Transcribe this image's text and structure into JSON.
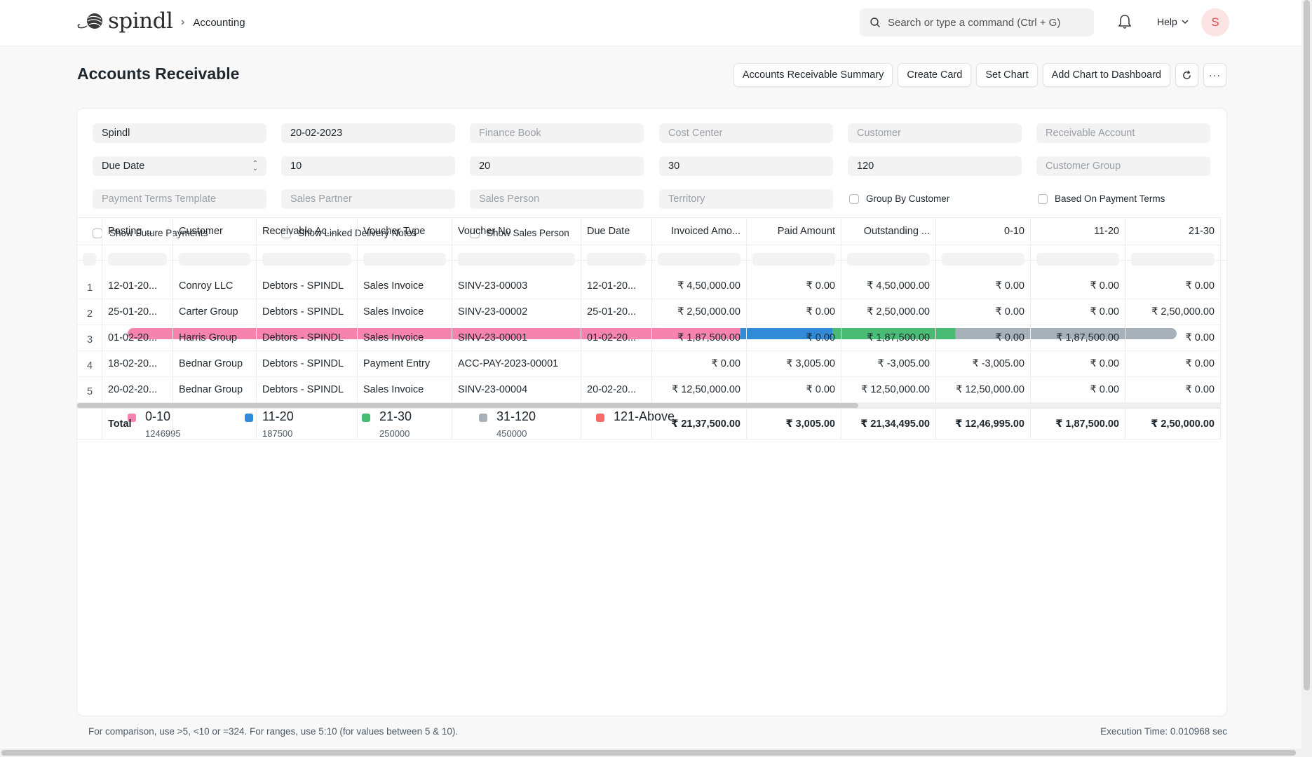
{
  "navbar": {
    "brand": "spindl",
    "breadcrumb": "Accounting",
    "search_placeholder": "Search or type a command (Ctrl + G)",
    "help_label": "Help",
    "avatar_initial": "S"
  },
  "page": {
    "title": "Accounts Receivable",
    "actions": [
      "Accounts Receivable Summary",
      "Create Card",
      "Set Chart",
      "Add Chart to Dashboard"
    ]
  },
  "filters": {
    "company": "Spindl",
    "report_date": "20-02-2023",
    "finance_book": "Finance Book",
    "cost_center": "Cost Center",
    "customer": "Customer",
    "receivable_account": "Receivable Account",
    "ageing_based_on": "Due Date",
    "range1": "10",
    "range2": "20",
    "range3": "30",
    "range4": "120",
    "customer_group": "Customer Group",
    "payment_terms_template": "Payment Terms Template",
    "sales_partner": "Sales Partner",
    "sales_person": "Sales Person",
    "territory": "Territory",
    "group_by_customer": "Group By Customer",
    "based_on_payment_terms": "Based On Payment Terms",
    "show_future_payments": "Show Future Payments",
    "show_linked_delivery_notes": "Show Linked Delivery Notes",
    "show_sales_person": "Show Sales Person"
  },
  "chart_data": {
    "type": "bar",
    "stacked": true,
    "orientation": "horizontal",
    "series": [
      {
        "name": "0-10",
        "value": 1246995,
        "value_label": "1246995",
        "color": "#f683ae"
      },
      {
        "name": "11-20",
        "value": 187500,
        "value_label": "187500",
        "color": "#318ad8"
      },
      {
        "name": "21-30",
        "value": 250000,
        "value_label": "250000",
        "color": "#48bb74"
      },
      {
        "name": "31-120",
        "value": 450000,
        "value_label": "450000",
        "color": "#a6b1b9"
      },
      {
        "name": "121-Above",
        "value": 0,
        "value_label": "",
        "color": "#f56b6b"
      }
    ],
    "legend": "bottom-left"
  },
  "table": {
    "columns": [
      "Posting ...",
      "Customer",
      "Receivable Ac...",
      "Voucher Type",
      "Voucher No",
      "Due Date",
      "Invoiced Amo...",
      "Paid Amount",
      "Outstanding ...",
      "0-10",
      "11-20",
      "21-30"
    ],
    "rows": [
      [
        "1",
        "12-01-20...",
        "Conroy LLC",
        "Debtors - SPINDL",
        "Sales Invoice",
        "SINV-23-00003",
        "12-01-20...",
        "₹ 4,50,000.00",
        "₹ 0.00",
        "₹ 4,50,000.00",
        "₹ 0.00",
        "₹ 0.00",
        "₹ 0.00"
      ],
      [
        "2",
        "25-01-20...",
        "Carter Group",
        "Debtors - SPINDL",
        "Sales Invoice",
        "SINV-23-00002",
        "25-01-20...",
        "₹ 2,50,000.00",
        "₹ 0.00",
        "₹ 2,50,000.00",
        "₹ 0.00",
        "₹ 0.00",
        "₹ 2,50,000.00"
      ],
      [
        "3",
        "01-02-20...",
        "Harris Group",
        "Debtors - SPINDL",
        "Sales Invoice",
        "SINV-23-00001",
        "01-02-20...",
        "₹ 1,87,500.00",
        "₹ 0.00",
        "₹ 1,87,500.00",
        "₹ 0.00",
        "₹ 1,87,500.00",
        "₹ 0.00"
      ],
      [
        "4",
        "18-02-20...",
        "Bednar Group",
        "Debtors - SPINDL",
        "Payment Entry",
        "ACC-PAY-2023-00001",
        "",
        "₹ 0.00",
        "₹ 3,005.00",
        "₹ -3,005.00",
        "₹ -3,005.00",
        "₹ 0.00",
        "₹ 0.00"
      ],
      [
        "5",
        "20-02-20...",
        "Bednar Group",
        "Debtors - SPINDL",
        "Sales Invoice",
        "SINV-23-00004",
        "20-02-20...",
        "₹ 12,50,000.00",
        "₹ 0.00",
        "₹ 12,50,000.00",
        "₹ 12,50,000.00",
        "₹ 0.00",
        "₹ 0.00"
      ]
    ],
    "total": [
      "",
      "Total",
      "",
      "",
      "",
      "",
      "",
      "₹ 21,37,500.00",
      "₹ 3,005.00",
      "₹ 21,34,495.00",
      "₹ 12,46,995.00",
      "₹ 1,87,500.00",
      "₹ 2,50,000.00"
    ]
  },
  "footer": {
    "note": "For comparison, use >5, <10 or =324. For ranges, use 5:10 (for values between 5 & 10).",
    "execution_time": "Execution Time: 0.010968 sec"
  }
}
